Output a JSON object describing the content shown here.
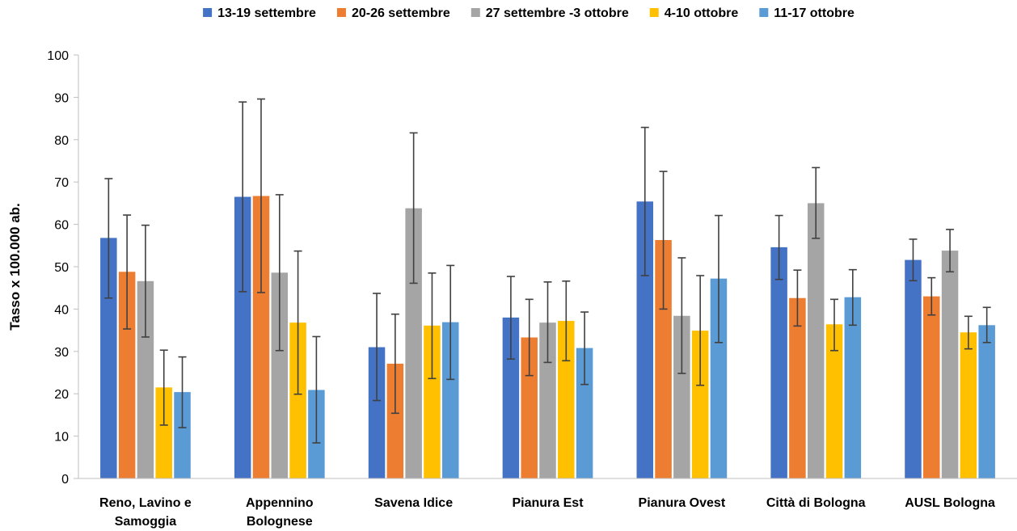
{
  "chart_data": {
    "type": "bar",
    "ylabel": "Tasso x 100.000 ab.",
    "ylim": [
      0,
      100
    ],
    "yticks": [
      0,
      10,
      20,
      30,
      40,
      50,
      60,
      70,
      80,
      90,
      100
    ],
    "categories": [
      [
        "Reno, Lavino e",
        "Samoggia"
      ],
      [
        "Appennino",
        "Bolognese"
      ],
      [
        "Savena Idice"
      ],
      [
        "Pianura Est"
      ],
      [
        "Pianura Ovest"
      ],
      [
        "Città di Bologna"
      ],
      [
        "AUSL Bologna"
      ]
    ],
    "legend_position": "top",
    "error_bars": true,
    "series": [
      {
        "name": "13-19 settembre",
        "color": "#4472C4",
        "values": [
          56.8,
          66.5,
          31.0,
          38.0,
          65.4,
          54.6,
          51.6
        ],
        "lower": [
          42.6,
          44.1,
          18.4,
          28.2,
          47.9,
          47.0,
          46.7
        ],
        "upper": [
          70.8,
          88.9,
          43.7,
          47.7,
          82.9,
          62.1,
          56.5
        ]
      },
      {
        "name": "20-26 settembre",
        "color": "#ED7D31",
        "values": [
          48.8,
          66.7,
          27.1,
          33.3,
          56.3,
          42.6,
          43.0
        ],
        "lower": [
          35.3,
          43.9,
          15.4,
          24.3,
          40.0,
          36.0,
          38.6
        ],
        "upper": [
          62.2,
          89.6,
          38.8,
          42.3,
          72.5,
          49.2,
          47.4
        ]
      },
      {
        "name": "27 settembre -3 ottobre",
        "color": "#A5A5A5",
        "values": [
          46.6,
          48.6,
          63.8,
          36.8,
          38.4,
          65.0,
          53.8
        ],
        "lower": [
          33.4,
          30.2,
          46.1,
          27.4,
          24.8,
          56.7,
          48.8
        ],
        "upper": [
          59.8,
          67.0,
          81.6,
          46.4,
          52.1,
          73.4,
          58.8
        ]
      },
      {
        "name": "4-10 ottobre",
        "color": "#FFC000",
        "values": [
          21.5,
          36.8,
          36.1,
          37.2,
          34.9,
          36.4,
          34.5
        ],
        "lower": [
          12.6,
          19.9,
          23.6,
          27.8,
          22.0,
          30.2,
          30.6
        ],
        "upper": [
          30.3,
          53.7,
          48.5,
          46.6,
          47.9,
          42.3,
          38.3
        ]
      },
      {
        "name": "11-17 ottobre",
        "color": "#5B9BD5",
        "values": [
          20.4,
          20.9,
          36.9,
          30.8,
          47.2,
          42.8,
          36.2
        ],
        "lower": [
          12.0,
          8.4,
          23.4,
          22.2,
          32.1,
          36.2,
          32.1
        ],
        "upper": [
          28.7,
          33.5,
          50.3,
          39.3,
          62.1,
          49.3,
          40.4
        ]
      }
    ]
  }
}
